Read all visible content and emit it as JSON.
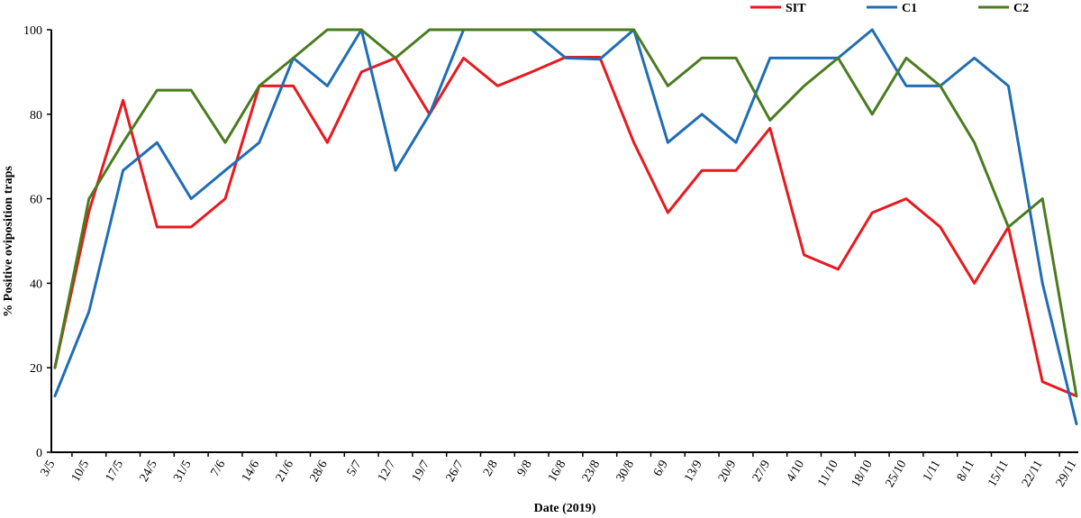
{
  "chart_data": {
    "type": "line",
    "xlabel": "Date (2019)",
    "ylabel": "% Positive oviposition traps",
    "ylim": [
      0,
      100
    ],
    "yticks": [
      0,
      20,
      40,
      60,
      80,
      100
    ],
    "grid": false,
    "legend_position": "top-right",
    "categories": [
      "3/5",
      "10/5",
      "17/5",
      "24/5",
      "31/5",
      "7/6",
      "14/6",
      "21/6",
      "28/6",
      "5/7",
      "12/7",
      "19/7",
      "26/7",
      "2/8",
      "9/8",
      "16/8",
      "23/8",
      "30/8",
      "6/9",
      "13/9",
      "20/9",
      "27/9",
      "4/10",
      "11/10",
      "18/10",
      "25/10",
      "1/11",
      "8/11",
      "15/11",
      "22/11",
      "29/11"
    ],
    "series": [
      {
        "name": "SIT",
        "color": "#e8191e",
        "values": [
          20,
          57,
          83.3,
          53.3,
          53.3,
          60,
          86.7,
          86.7,
          73.3,
          90,
          93.3,
          80,
          93.3,
          86.7,
          90,
          93.5,
          93.5,
          73.3,
          56.7,
          66.7,
          66.7,
          76.7,
          46.7,
          43.3,
          56.7,
          60,
          53.3,
          40,
          53.3,
          16.7,
          13.3
        ]
      },
      {
        "name": "C1",
        "color": "#1f6db5",
        "values": [
          13.3,
          33.3,
          66.7,
          73.3,
          60,
          66.7,
          73.3,
          93.3,
          86.7,
          100,
          66.7,
          80,
          100,
          100,
          100,
          93.3,
          93,
          100,
          73.3,
          80,
          73.3,
          93.3,
          93.3,
          93.3,
          100,
          86.7,
          86.7,
          93.3,
          86.7,
          40,
          6.7
        ]
      },
      {
        "name": "C2",
        "color": "#4a7c1f",
        "values": [
          20,
          60,
          73.3,
          85.7,
          85.7,
          73.3,
          86.7,
          93.3,
          100,
          100,
          93.3,
          100,
          100,
          100,
          100,
          100,
          100,
          100,
          86.7,
          93.3,
          93.3,
          78.6,
          86.7,
          93.3,
          80,
          93.3,
          86.7,
          73.3,
          53.3,
          60,
          13.3
        ]
      }
    ]
  }
}
